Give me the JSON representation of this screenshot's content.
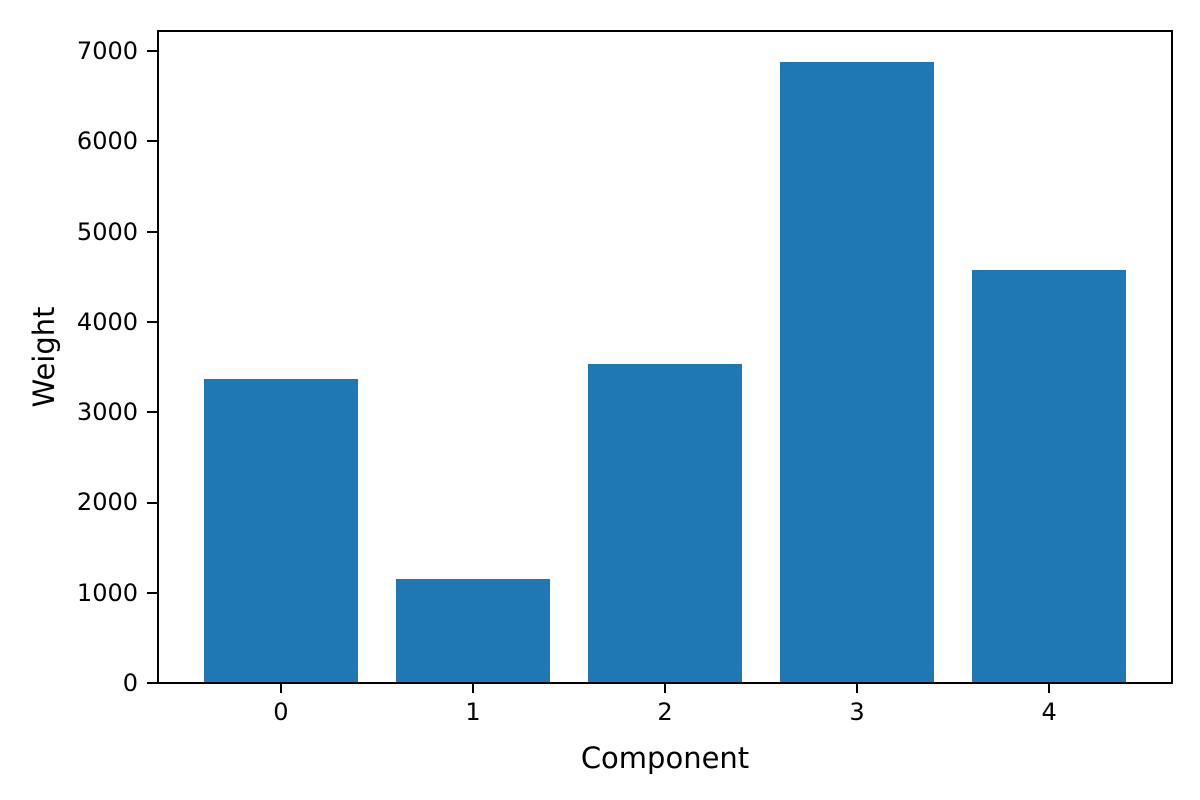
{
  "figure": {
    "background": "#ffffff"
  },
  "chart_data": {
    "type": "bar",
    "title": "",
    "xlabel": "Component",
    "ylabel": "Weight",
    "categories": [
      "0",
      "1",
      "2",
      "3",
      "4"
    ],
    "values": [
      3370,
      1150,
      3540,
      6880,
      4580
    ],
    "xlim": [
      -0.64,
      4.64
    ],
    "ylim": [
      0,
      7224
    ],
    "yticks": [
      0,
      1000,
      2000,
      3000,
      4000,
      5000,
      6000,
      7000
    ],
    "bar_color": "#1f77b4",
    "bar_width": 0.8,
    "grid": false,
    "legend": "none",
    "spine_color": "#000000",
    "text_color": "#000000"
  }
}
